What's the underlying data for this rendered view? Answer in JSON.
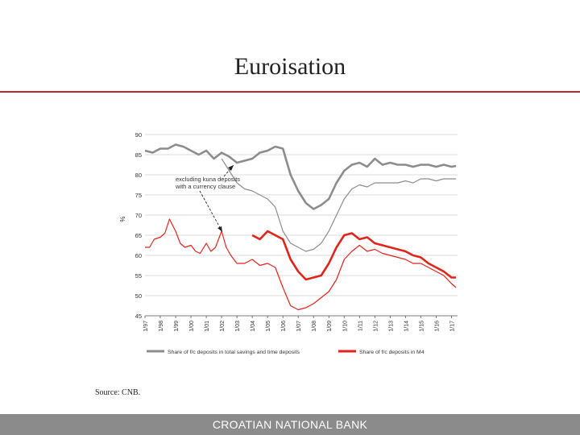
{
  "slide": {
    "title": "Euroisation",
    "source": "Source: CNB.",
    "footer": "CROATIAN NATIONAL BANK"
  },
  "colors": {
    "accent": "#c0272d",
    "grey_series": "#8c8c8c",
    "red_series": "#e2231a",
    "footer": "#8b8b8b"
  },
  "chart_data": {
    "type": "line",
    "ylabel": "%",
    "ylim": [
      45,
      90
    ],
    "yticks": [
      45,
      50,
      55,
      60,
      65,
      70,
      75,
      80,
      85,
      90
    ],
    "grid": true,
    "legend_position": "bottom",
    "x_tick_labels": [
      "1/97",
      "1/98",
      "1/99",
      "1/00",
      "1/01",
      "1/02",
      "1/03",
      "1/04",
      "1/05",
      "1/06",
      "1/07",
      "1/08",
      "1/09",
      "1/10",
      "1/11",
      "1/12",
      "1/13",
      "1/14",
      "1/15",
      "1/16",
      "1/17"
    ],
    "annotation": {
      "text_line1": "excluding kuna deposits",
      "text_line2": "with a currency clause"
    },
    "series": [
      {
        "name": "Share of f/c deposits in total savings and time deposits",
        "color": "#8c8c8c",
        "width": 2.6,
        "points": [
          [
            0,
            86
          ],
          [
            0.5,
            85.5
          ],
          [
            1,
            86.5
          ],
          [
            1.5,
            86.5
          ],
          [
            2,
            87.5
          ],
          [
            2.5,
            87
          ],
          [
            3,
            86
          ],
          [
            3.5,
            85
          ],
          [
            4,
            86
          ],
          [
            4.5,
            84
          ],
          [
            5,
            85.5
          ],
          [
            5.5,
            84.5
          ],
          [
            6,
            83
          ],
          [
            6.5,
            83.5
          ],
          [
            7,
            84
          ],
          [
            7.5,
            85.5
          ],
          [
            8,
            86
          ],
          [
            8.5,
            87
          ],
          [
            9,
            86.5
          ],
          [
            9.5,
            80
          ],
          [
            10,
            76
          ],
          [
            10.5,
            73
          ],
          [
            11,
            71.5
          ],
          [
            11.5,
            72.5
          ],
          [
            12,
            74
          ],
          [
            12.5,
            78
          ],
          [
            13,
            81
          ],
          [
            13.5,
            82.5
          ],
          [
            14,
            83
          ],
          [
            14.5,
            82
          ],
          [
            15,
            84
          ],
          [
            15.5,
            82.5
          ],
          [
            16,
            83
          ],
          [
            16.5,
            82.5
          ],
          [
            17,
            82.5
          ],
          [
            17.5,
            82
          ],
          [
            18,
            82.5
          ],
          [
            18.5,
            82.5
          ],
          [
            19,
            82
          ],
          [
            19.5,
            82.5
          ],
          [
            20,
            82
          ],
          [
            20.3,
            82.2
          ]
        ]
      },
      {
        "name": "",
        "color": "#8c8c8c",
        "width": 1.2,
        "points": [
          [
            5,
            84
          ],
          [
            5.5,
            81
          ],
          [
            6,
            78
          ],
          [
            6.5,
            76.5
          ],
          [
            7,
            76
          ],
          [
            7.5,
            75
          ],
          [
            8,
            74
          ],
          [
            8.5,
            72
          ],
          [
            9,
            66
          ],
          [
            9.5,
            63
          ],
          [
            10,
            62
          ],
          [
            10.5,
            61
          ],
          [
            11,
            61.5
          ],
          [
            11.5,
            63
          ],
          [
            12,
            66
          ],
          [
            12.5,
            70
          ],
          [
            13,
            74
          ],
          [
            13.5,
            76.5
          ],
          [
            14,
            77.5
          ],
          [
            14.5,
            77
          ],
          [
            15,
            78
          ],
          [
            15.5,
            78
          ],
          [
            16,
            78
          ],
          [
            16.5,
            78
          ],
          [
            17,
            78.5
          ],
          [
            17.5,
            78
          ],
          [
            18,
            79
          ],
          [
            18.5,
            79
          ],
          [
            19,
            78.5
          ],
          [
            19.5,
            79
          ],
          [
            20,
            79
          ],
          [
            20.3,
            79
          ]
        ]
      },
      {
        "name": "Share of f/c deposits in M4",
        "color": "#e2231a",
        "width": 2.6,
        "points": [
          [
            7,
            65
          ],
          [
            7.5,
            64
          ],
          [
            8,
            66
          ],
          [
            8.5,
            65
          ],
          [
            9,
            64
          ],
          [
            9.5,
            59
          ],
          [
            10,
            56
          ],
          [
            10.5,
            54
          ],
          [
            11,
            54.5
          ],
          [
            11.5,
            55
          ],
          [
            12,
            58
          ],
          [
            12.5,
            62
          ],
          [
            13,
            65
          ],
          [
            13.5,
            65.5
          ],
          [
            14,
            64
          ],
          [
            14.5,
            64.5
          ],
          [
            15,
            63
          ],
          [
            15.5,
            62.5
          ],
          [
            16,
            62
          ],
          [
            16.5,
            61.5
          ],
          [
            17,
            61
          ],
          [
            17.5,
            60
          ],
          [
            18,
            59.5
          ],
          [
            18.5,
            58
          ],
          [
            19,
            57
          ],
          [
            19.5,
            56
          ],
          [
            20,
            54.5
          ],
          [
            20.3,
            54.5
          ]
        ]
      },
      {
        "name": "",
        "color": "#e2231a",
        "width": 1.2,
        "points": [
          [
            0,
            62
          ],
          [
            0.3,
            62
          ],
          [
            0.6,
            64
          ],
          [
            1,
            64.5
          ],
          [
            1.3,
            65.5
          ],
          [
            1.6,
            69
          ],
          [
            2,
            66
          ],
          [
            2.3,
            63
          ],
          [
            2.6,
            62
          ],
          [
            3,
            62.5
          ],
          [
            3.3,
            61
          ],
          [
            3.6,
            60.5
          ],
          [
            4,
            63
          ],
          [
            4.3,
            61
          ],
          [
            4.6,
            62
          ],
          [
            5,
            66
          ],
          [
            5.3,
            62
          ],
          [
            5.6,
            60
          ],
          [
            6,
            58
          ],
          [
            6.5,
            58
          ],
          [
            7,
            59
          ],
          [
            7.5,
            57.5
          ],
          [
            8,
            58
          ],
          [
            8.5,
            57
          ],
          [
            9,
            52
          ],
          [
            9.5,
            47.5
          ],
          [
            10,
            46.5
          ],
          [
            10.5,
            47
          ],
          [
            11,
            48
          ],
          [
            11.5,
            49.5
          ],
          [
            12,
            51
          ],
          [
            12.5,
            54
          ],
          [
            13,
            59
          ],
          [
            13.5,
            61
          ],
          [
            14,
            62.5
          ],
          [
            14.5,
            61
          ],
          [
            15,
            61.5
          ],
          [
            15.5,
            60.5
          ],
          [
            16,
            60
          ],
          [
            16.5,
            59.5
          ],
          [
            17,
            59
          ],
          [
            17.5,
            58
          ],
          [
            18,
            58
          ],
          [
            18.5,
            57
          ],
          [
            19,
            56
          ],
          [
            19.5,
            55
          ],
          [
            20,
            53
          ],
          [
            20.3,
            52
          ]
        ]
      }
    ]
  }
}
